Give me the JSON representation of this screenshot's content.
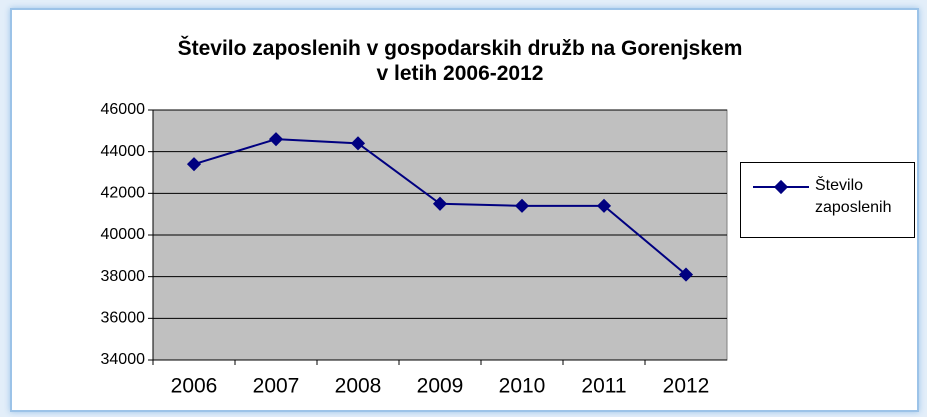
{
  "chart_data": {
    "type": "line",
    "title": "Število zaposlenih v gospodarskih družb na Gorenjskem\nv letih 2006-2012",
    "categories": [
      "2006",
      "2007",
      "2008",
      "2009",
      "2010",
      "2011",
      "2012"
    ],
    "series": [
      {
        "name": "Število zaposlenih",
        "color": "#000080",
        "values": [
          43400,
          44600,
          44400,
          41500,
          41400,
          41400,
          38100
        ]
      }
    ],
    "ylim": [
      34000,
      46000
    ],
    "yticks": [
      34000,
      36000,
      38000,
      40000,
      42000,
      44000,
      46000
    ],
    "grid": true,
    "legend": "right"
  }
}
